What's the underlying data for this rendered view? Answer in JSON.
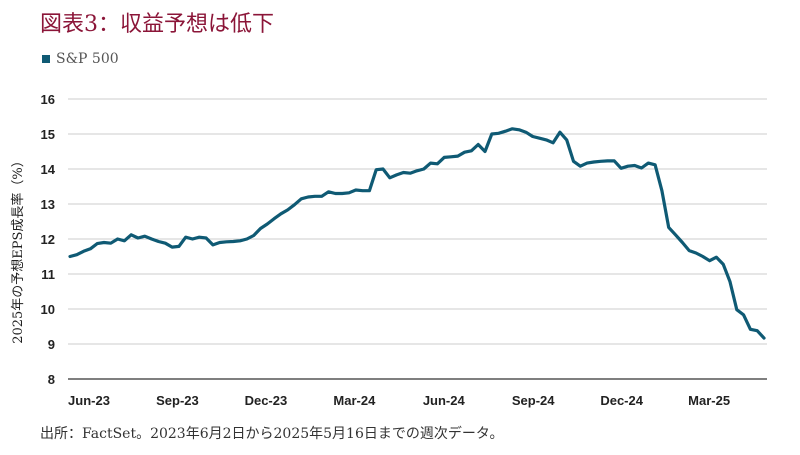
{
  "header": {
    "title": "図表3：収益予想は低下"
  },
  "footer": {
    "source": "出所：FactSet。2023年6月2日から2025年5月16日までの週次データ。"
  },
  "colors": {
    "title": "#8b1538",
    "series": "#0f5a74",
    "grid": "#cccccc",
    "axis": "#333333"
  },
  "chart_data": {
    "type": "line",
    "title": "図表3：収益予想は低下",
    "ylabel": "2025年の予想EPS成長率（%）",
    "xlabel": "",
    "ylim": [
      8,
      16
    ],
    "yticks": [
      8,
      9,
      10,
      11,
      12,
      13,
      14,
      15,
      16
    ],
    "xlim": [
      "2023-06-02",
      "2025-05-16"
    ],
    "xticks": [
      {
        "label": "Jun-23",
        "date": "2023-06-02"
      },
      {
        "label": "Sep-23",
        "date": "2023-09-01"
      },
      {
        "label": "Dec-23",
        "date": "2023-12-01"
      },
      {
        "label": "Mar-24",
        "date": "2024-03-01"
      },
      {
        "label": "Jun-24",
        "date": "2024-06-01"
      },
      {
        "label": "Sep-24",
        "date": "2024-09-01"
      },
      {
        "label": "Dec-24",
        "date": "2024-12-01"
      },
      {
        "label": "Mar-25",
        "date": "2025-03-01"
      }
    ],
    "grid": true,
    "legend": "top-left",
    "series": [
      {
        "name": "S&P 500",
        "color": "#0f5a74",
        "points": [
          [
            "2023-06-02",
            11.5
          ],
          [
            "2023-06-09",
            11.55
          ],
          [
            "2023-06-16",
            11.65
          ],
          [
            "2023-06-23",
            11.72
          ],
          [
            "2023-06-30",
            11.87
          ],
          [
            "2023-07-07",
            11.9
          ],
          [
            "2023-07-14",
            11.88
          ],
          [
            "2023-07-21",
            12.0
          ],
          [
            "2023-07-28",
            11.95
          ],
          [
            "2023-08-04",
            12.12
          ],
          [
            "2023-08-11",
            12.03
          ],
          [
            "2023-08-18",
            12.08
          ],
          [
            "2023-08-25",
            12.0
          ],
          [
            "2023-09-01",
            11.93
          ],
          [
            "2023-09-08",
            11.88
          ],
          [
            "2023-09-15",
            11.77
          ],
          [
            "2023-09-22",
            11.79
          ],
          [
            "2023-09-29",
            12.05
          ],
          [
            "2023-10-06",
            12.0
          ],
          [
            "2023-10-13",
            12.05
          ],
          [
            "2023-10-20",
            12.03
          ],
          [
            "2023-10-27",
            11.83
          ],
          [
            "2023-11-03",
            11.9
          ],
          [
            "2023-11-10",
            11.92
          ],
          [
            "2023-11-17",
            11.93
          ],
          [
            "2023-11-24",
            11.95
          ],
          [
            "2023-12-01",
            12.0
          ],
          [
            "2023-12-08",
            12.1
          ],
          [
            "2023-12-15",
            12.3
          ],
          [
            "2023-12-22",
            12.43
          ],
          [
            "2023-12-29",
            12.58
          ],
          [
            "2024-01-05",
            12.72
          ],
          [
            "2024-01-12",
            12.83
          ],
          [
            "2024-01-19",
            12.98
          ],
          [
            "2024-01-26",
            13.15
          ],
          [
            "2024-02-02",
            13.2
          ],
          [
            "2024-02-09",
            13.22
          ],
          [
            "2024-02-16",
            13.22
          ],
          [
            "2024-02-23",
            13.35
          ],
          [
            "2024-03-01",
            13.3
          ],
          [
            "2024-03-08",
            13.3
          ],
          [
            "2024-03-15",
            13.32
          ],
          [
            "2024-03-22",
            13.4
          ],
          [
            "2024-03-29",
            13.38
          ],
          [
            "2024-04-05",
            13.38
          ],
          [
            "2024-04-12",
            13.98
          ],
          [
            "2024-04-19",
            14.0
          ],
          [
            "2024-04-26",
            13.75
          ],
          [
            "2024-05-03",
            13.83
          ],
          [
            "2024-05-10",
            13.9
          ],
          [
            "2024-05-17",
            13.88
          ],
          [
            "2024-05-24",
            13.95
          ],
          [
            "2024-05-31",
            14.0
          ],
          [
            "2024-06-07",
            14.17
          ],
          [
            "2024-06-14",
            14.15
          ],
          [
            "2024-06-21",
            14.33
          ],
          [
            "2024-06-28",
            14.35
          ],
          [
            "2024-07-05",
            14.37
          ],
          [
            "2024-07-12",
            14.48
          ],
          [
            "2024-07-19",
            14.52
          ],
          [
            "2024-07-26",
            14.7
          ],
          [
            "2024-08-02",
            14.5
          ],
          [
            "2024-08-09",
            15.0
          ],
          [
            "2024-08-16",
            15.02
          ],
          [
            "2024-08-23",
            15.08
          ],
          [
            "2024-08-30",
            15.15
          ],
          [
            "2024-09-06",
            15.12
          ],
          [
            "2024-09-13",
            15.05
          ],
          [
            "2024-09-20",
            14.93
          ],
          [
            "2024-09-27",
            14.88
          ],
          [
            "2024-10-04",
            14.83
          ],
          [
            "2024-10-11",
            14.75
          ],
          [
            "2024-10-18",
            15.05
          ],
          [
            "2024-10-25",
            14.83
          ],
          [
            "2024-11-01",
            14.22
          ],
          [
            "2024-11-08",
            14.08
          ],
          [
            "2024-11-15",
            14.17
          ],
          [
            "2024-11-22",
            14.2
          ],
          [
            "2024-11-29",
            14.22
          ],
          [
            "2024-12-06",
            14.23
          ],
          [
            "2024-12-13",
            14.23
          ],
          [
            "2024-12-20",
            14.02
          ],
          [
            "2024-12-27",
            14.08
          ],
          [
            "2025-01-03",
            14.1
          ],
          [
            "2025-01-10",
            14.03
          ],
          [
            "2025-01-17",
            14.17
          ],
          [
            "2025-01-24",
            14.12
          ],
          [
            "2025-01-31",
            13.38
          ],
          [
            "2025-02-07",
            12.33
          ],
          [
            "2025-02-14",
            12.12
          ],
          [
            "2025-02-21",
            11.9
          ],
          [
            "2025-02-28",
            11.67
          ],
          [
            "2025-03-07",
            11.6
          ],
          [
            "2025-03-14",
            11.5
          ],
          [
            "2025-03-21",
            11.38
          ],
          [
            "2025-03-28",
            11.48
          ],
          [
            "2025-04-04",
            11.28
          ],
          [
            "2025-04-11",
            10.78
          ],
          [
            "2025-04-18",
            9.98
          ],
          [
            "2025-04-25",
            9.83
          ],
          [
            "2025-05-02",
            9.42
          ],
          [
            "2025-05-09",
            9.38
          ],
          [
            "2025-05-16",
            9.17
          ]
        ]
      }
    ]
  }
}
